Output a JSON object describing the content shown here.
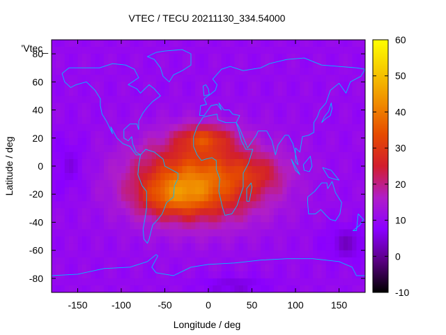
{
  "chart_data": {
    "type": "heatmap",
    "title": "VTEC / TECU 20211130_334.54000",
    "xlabel": "Longitude / deg",
    "ylabel": "Latitude / deg",
    "key_label": "'Vtec_",
    "xlim": [
      -180,
      180
    ],
    "ylim": [
      -90,
      90
    ],
    "x_ticks": [
      -150,
      -100,
      -50,
      0,
      50,
      100,
      150
    ],
    "y_ticks": [
      -80,
      -60,
      -40,
      -20,
      0,
      20,
      40,
      60,
      80
    ],
    "x_tick_labels": [
      "-150",
      "-100",
      "-50",
      "0",
      "50",
      "100",
      "150"
    ],
    "y_tick_labels": [
      "-80",
      "-60",
      "-40",
      "-20",
      "0",
      "20",
      "40",
      "60",
      "80"
    ],
    "colorbar": {
      "range": [
        -10,
        60
      ],
      "ticks": [
        -10,
        0,
        10,
        20,
        30,
        40,
        50,
        60
      ],
      "tick_labels": [
        "-10",
        "0",
        "10",
        "20",
        "30",
        "40",
        "50",
        "60"
      ],
      "palette": [
        "#000000",
        "#5a0082",
        "#8a00ff",
        "#b01ec8",
        "#d21e2d",
        "#e64b00",
        "#f08c00",
        "#f5c800",
        "#ffff00"
      ]
    },
    "field": {
      "background_tecu": 10,
      "features": [
        {
          "name": "equatorial-anomaly-main",
          "lon": -10,
          "lat": -10,
          "lon_width": 75,
          "lat_width": 28,
          "tecu": 28
        },
        {
          "name": "south-american-crest",
          "lon": -40,
          "lat": -22,
          "lon_width": 40,
          "lat_width": 14,
          "tecu": 12
        },
        {
          "name": "african-crest",
          "lon": -5,
          "lat": 20,
          "lon_width": 30,
          "lat_width": 9,
          "tecu": 15
        },
        {
          "name": "indian-ocean-tail",
          "lon": 60,
          "lat": -5,
          "lon_width": 30,
          "lat_width": 12,
          "tecu": 6
        },
        {
          "name": "pacific-depletion",
          "lon": -160,
          "lat": 0,
          "lon_width": 20,
          "lat_width": 20,
          "tecu": -4
        },
        {
          "name": "southern-depletion",
          "lon": 160,
          "lat": -55,
          "lon_width": 25,
          "lat_width": 12,
          "tecu": -6
        },
        {
          "name": "polar-depletion",
          "lon": 30,
          "lat": -85,
          "lon_width": 40,
          "lat_width": 6,
          "tecu": -5
        }
      ]
    },
    "overlay": "coastlines",
    "coastline_color": "#00bfff"
  }
}
